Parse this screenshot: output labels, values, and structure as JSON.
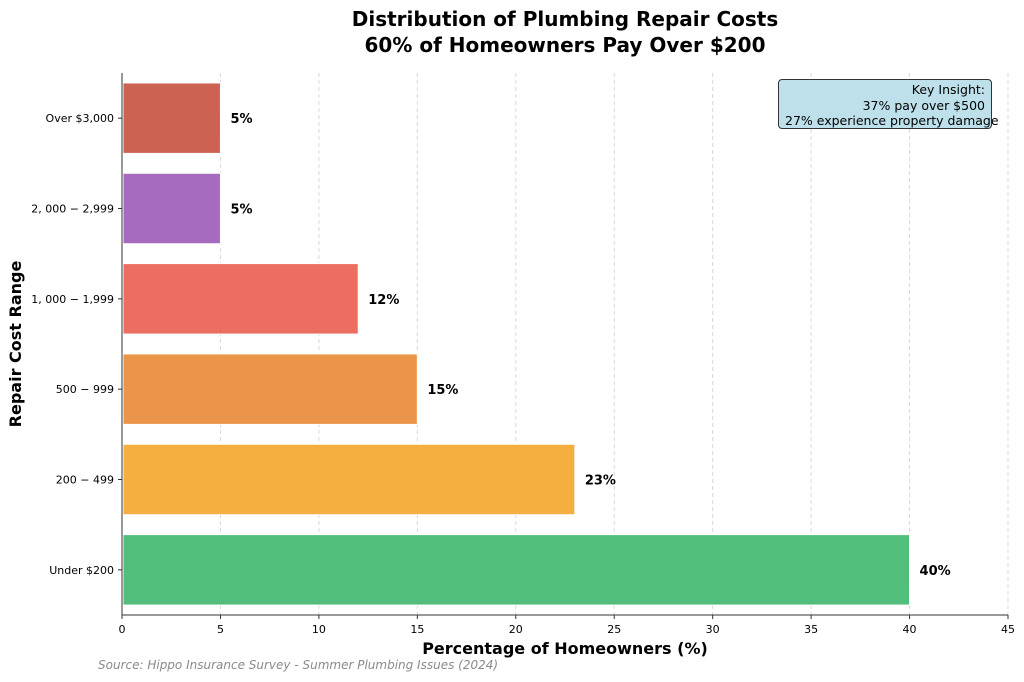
{
  "chart_data": {
    "type": "bar",
    "orientation": "horizontal",
    "title": "Distribution of Plumbing Repair Costs",
    "subtitle": "60% of Homeowners Pay Over $200",
    "xlabel": "Percentage of Homeowners (%)",
    "ylabel": "Repair Cost Range",
    "xlim": [
      0,
      45
    ],
    "xticks": [
      0,
      5,
      10,
      15,
      20,
      25,
      30,
      35,
      40,
      45
    ],
    "grid": "x-dashed",
    "categories": [
      "Under $200",
      "200 − 499",
      "500 − 999",
      "1, 000 − 1,999",
      "2, 000 − 2,999",
      "Over $3,000"
    ],
    "values": [
      40,
      23,
      15,
      12,
      5,
      5
    ],
    "value_labels": [
      "40%",
      "23%",
      "15%",
      "12%",
      "5%",
      "5%"
    ],
    "colors": [
      "#52be7c",
      "#f5ae40",
      "#ea9549",
      "#ec6e61",
      "#a66bbe",
      "#cc6352"
    ],
    "annotation": {
      "lines": [
        "Key Insight:",
        "37% pay over $500",
        "27% experience property damage"
      ],
      "placement": "top-right"
    },
    "source": "Source: Hippo Insurance Survey - Summer Plumbing Issues (2024)"
  }
}
